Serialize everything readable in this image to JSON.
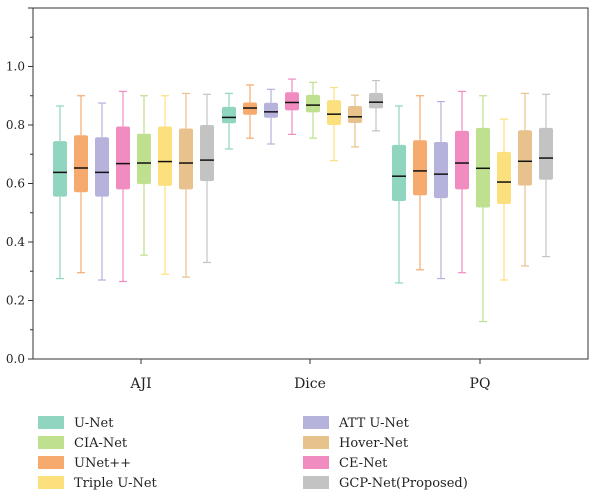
{
  "chart_data": {
    "type": "box",
    "groups": [
      "AJI",
      "Dice",
      "PQ"
    ],
    "ylim": [
      0.0,
      1.2
    ],
    "yticks": [
      "0.0",
      "0.2",
      "0.4",
      "0.6",
      "0.8",
      "1.0"
    ],
    "ytick_values": [
      0.0,
      0.2,
      0.4,
      0.6,
      0.8,
      1.0
    ],
    "grid": false,
    "legend_position": "bottom",
    "series": [
      {
        "name": "U-Net",
        "color": "#8fd5bf",
        "stats": [
          [
            0.275,
            0.555,
            0.638,
            0.745,
            0.865
          ],
          [
            0.718,
            0.806,
            0.826,
            0.862,
            0.908
          ],
          [
            0.26,
            0.54,
            0.625,
            0.732,
            0.865
          ]
        ]
      },
      {
        "name": "UNet++",
        "color": "#f6aa6e",
        "stats": [
          [
            0.295,
            0.57,
            0.653,
            0.765,
            0.9
          ],
          [
            0.755,
            0.835,
            0.858,
            0.877,
            0.937
          ],
          [
            0.305,
            0.56,
            0.643,
            0.748,
            0.9
          ]
        ]
      },
      {
        "name": "ATT U-Net",
        "color": "#b5b2dc",
        "stats": [
          [
            0.27,
            0.555,
            0.638,
            0.758,
            0.875
          ],
          [
            0.735,
            0.825,
            0.845,
            0.876,
            0.922
          ],
          [
            0.275,
            0.55,
            0.632,
            0.742,
            0.88
          ]
        ]
      },
      {
        "name": "CE-Net",
        "color": "#f08cc0",
        "stats": [
          [
            0.265,
            0.58,
            0.668,
            0.795,
            0.915
          ],
          [
            0.768,
            0.85,
            0.877,
            0.912,
            0.957
          ],
          [
            0.295,
            0.58,
            0.67,
            0.78,
            0.915
          ]
        ]
      },
      {
        "name": "CIA-Net",
        "color": "#bfe08e",
        "stats": [
          [
            0.355,
            0.598,
            0.67,
            0.77,
            0.9
          ],
          [
            0.755,
            0.843,
            0.868,
            0.903,
            0.946
          ],
          [
            0.128,
            0.518,
            0.652,
            0.79,
            0.9
          ]
        ]
      },
      {
        "name": "Triple U-Net",
        "color": "#fde07e",
        "stats": [
          [
            0.29,
            0.592,
            0.675,
            0.795,
            0.9
          ],
          [
            0.678,
            0.8,
            0.837,
            0.885,
            0.928
          ],
          [
            0.27,
            0.53,
            0.605,
            0.708,
            0.82
          ]
        ]
      },
      {
        "name": "Hover-Net",
        "color": "#e7c28c",
        "stats": [
          [
            0.28,
            0.58,
            0.67,
            0.788,
            0.908
          ],
          [
            0.725,
            0.807,
            0.828,
            0.865,
            0.902
          ],
          [
            0.318,
            0.593,
            0.676,
            0.782,
            0.908
          ]
        ]
      },
      {
        "name": "GCP-Net(Proposed)",
        "color": "#c3c3c3",
        "stats": [
          [
            0.33,
            0.608,
            0.68,
            0.8,
            0.905
          ],
          [
            0.78,
            0.857,
            0.878,
            0.91,
            0.952
          ],
          [
            0.35,
            0.613,
            0.687,
            0.79,
            0.905
          ]
        ]
      }
    ],
    "legend_order": [
      "U-Net",
      "ATT U-Net",
      "CIA-Net",
      "Hover-Net",
      "UNet++",
      "CE-Net",
      "Triple U-Net",
      "GCP-Net(Proposed)"
    ]
  }
}
